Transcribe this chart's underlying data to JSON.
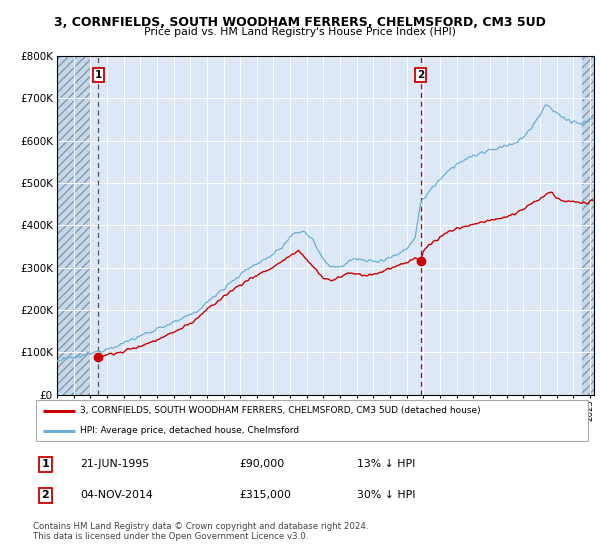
{
  "title": "3, CORNFIELDS, SOUTH WOODHAM FERRERS, CHELMSFORD, CM3 5UD",
  "subtitle": "Price paid vs. HM Land Registry's House Price Index (HPI)",
  "background_color": "#ffffff",
  "plot_bg_color": "#dce8f5",
  "hpi_color": "#6baed6",
  "price_color": "#cc0000",
  "hatch_facecolor": "#c5d8ea",
  "sale1_date_num": 1995.47,
  "sale1_price": 90000,
  "sale2_date_num": 2014.84,
  "sale2_price": 315000,
  "xmin": 1993.0,
  "xmax": 2025.25,
  "ymin": 0,
  "ymax": 800000,
  "yticks": [
    0,
    100000,
    200000,
    300000,
    400000,
    500000,
    600000,
    700000,
    800000
  ],
  "ytick_labels": [
    "£0",
    "£100K",
    "£200K",
    "£300K",
    "£400K",
    "£500K",
    "£600K",
    "£700K",
    "£800K"
  ],
  "legend_line1": "3, CORNFIELDS, SOUTH WOODHAM FERRERS, CHELMSFORD, CM3 5UD (detached house)",
  "legend_line2": "HPI: Average price, detached house, Chelmsford",
  "table_row1": [
    "1",
    "21-JUN-1995",
    "£90,000",
    "13% ↓ HPI"
  ],
  "table_row2": [
    "2",
    "04-NOV-2014",
    "£315,000",
    "30% ↓ HPI"
  ],
  "footer": "Contains HM Land Registry data © Crown copyright and database right 2024.\nThis data is licensed under the Open Government Licence v3.0.",
  "hatch_left_end": 1995.0,
  "hatch_right_start": 2024.5
}
